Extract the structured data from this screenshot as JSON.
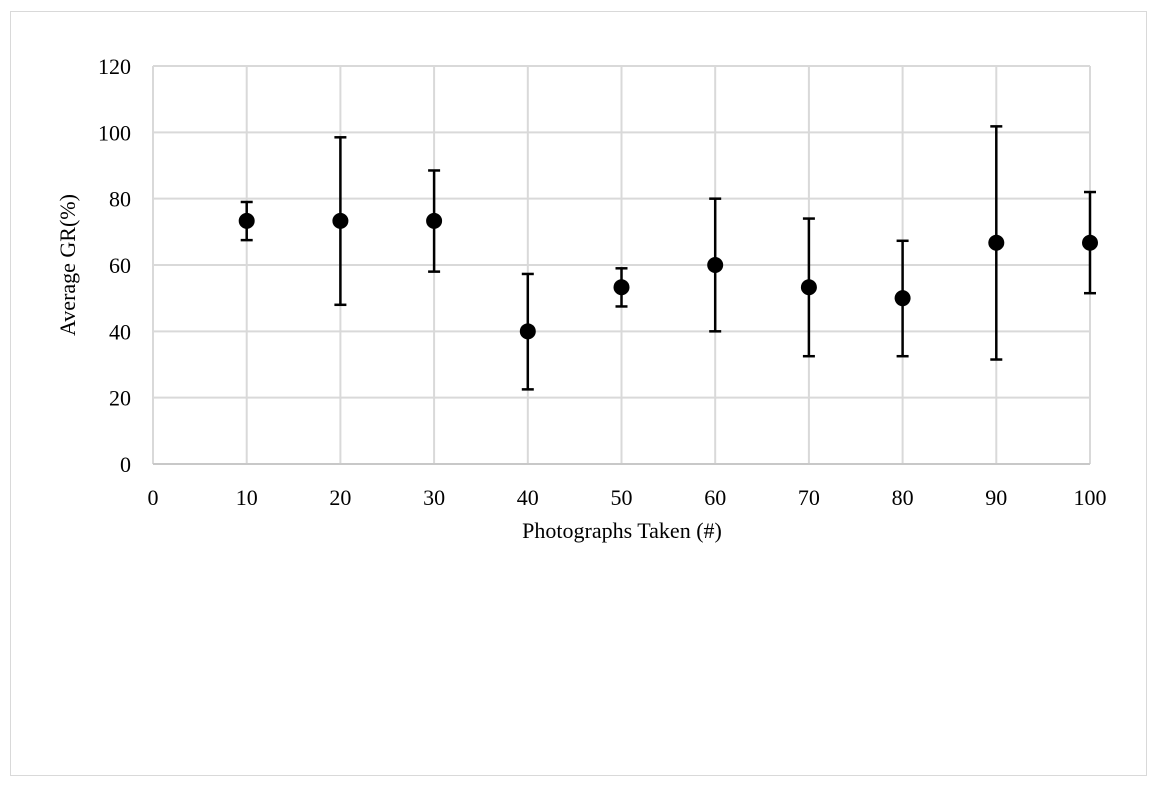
{
  "chart_data": {
    "type": "scatter",
    "title": "",
    "xlabel": "Photographs Taken (#)",
    "ylabel": "Average GR(%)",
    "xlim": [
      0,
      100
    ],
    "ylim": [
      0,
      120
    ],
    "x_ticks": [
      "0",
      "10",
      "20",
      "30",
      "40",
      "50",
      "60",
      "70",
      "80",
      "90",
      "100"
    ],
    "y_ticks": [
      "0",
      "20",
      "40",
      "60",
      "80",
      "100",
      "120"
    ],
    "grid": true,
    "legend": "none",
    "marker_color": "#000000",
    "gridline_color": "#d9d9d9",
    "points": [
      {
        "x": 10,
        "y": 73.3,
        "err_low": 67.5,
        "err_high": 79.0
      },
      {
        "x": 20,
        "y": 73.3,
        "err_low": 48.0,
        "err_high": 98.5
      },
      {
        "x": 30,
        "y": 73.3,
        "err_low": 58.0,
        "err_high": 88.5
      },
      {
        "x": 40,
        "y": 40.0,
        "err_low": 22.5,
        "err_high": 57.3
      },
      {
        "x": 50,
        "y": 53.3,
        "err_low": 47.5,
        "err_high": 59.0
      },
      {
        "x": 60,
        "y": 60.0,
        "err_low": 40.0,
        "err_high": 80.0
      },
      {
        "x": 70,
        "y": 53.3,
        "err_low": 32.5,
        "err_high": 74.0
      },
      {
        "x": 80,
        "y": 50.0,
        "err_low": 32.5,
        "err_high": 67.3
      },
      {
        "x": 90,
        "y": 66.7,
        "err_low": 31.5,
        "err_high": 101.8
      },
      {
        "x": 100,
        "y": 66.7,
        "err_low": 51.5,
        "err_high": 82.0
      }
    ]
  }
}
